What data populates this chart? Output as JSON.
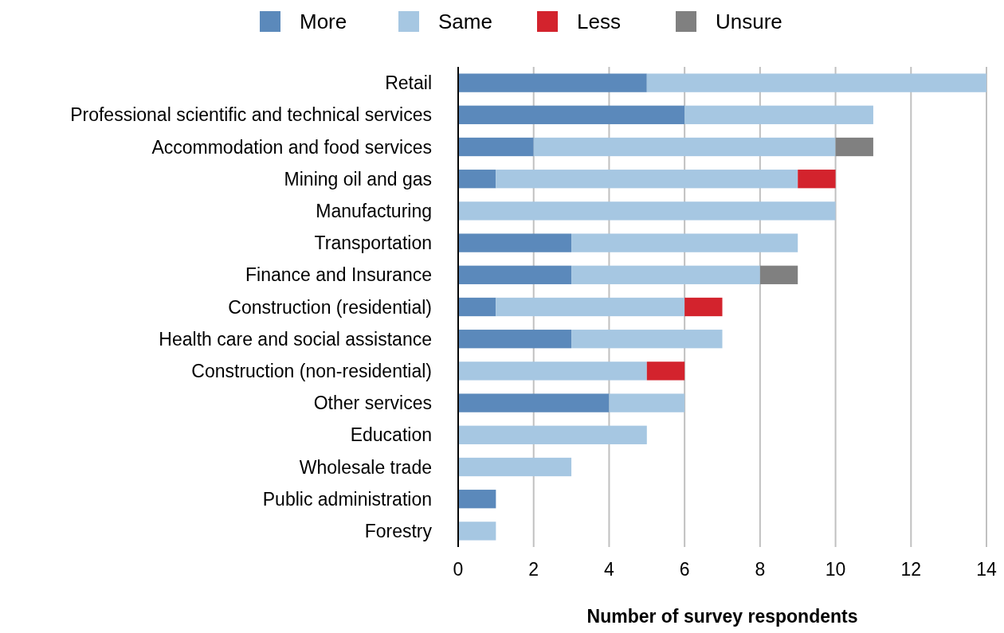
{
  "chart_data": {
    "type": "bar",
    "orientation": "horizontal",
    "stacked": true,
    "xlabel": "Number of survey respondents",
    "categories": [
      "Retail",
      "Professional scientific and technical services",
      "Accommodation and food services",
      "Mining oil and gas",
      "Manufacturing",
      "Transportation",
      "Finance and Insurance",
      "Construction (residential)",
      "Health care and social assistance",
      "Construction (non-residential)",
      "Other services",
      "Education",
      "Wholesale trade",
      "Public administration",
      "Forestry"
    ],
    "series": [
      {
        "name": "More",
        "color": "#5b89bb",
        "values": [
          5,
          6,
          2,
          1,
          null,
          3,
          3,
          1,
          3,
          null,
          4,
          null,
          null,
          1,
          null
        ]
      },
      {
        "name": "Same",
        "color": "#a6c7e2",
        "values": [
          9,
          5,
          8,
          8,
          10,
          6,
          5,
          5,
          4,
          5,
          2,
          5,
          3,
          null,
          1
        ]
      },
      {
        "name": "Less",
        "color": "#d3232d",
        "values": [
          null,
          null,
          null,
          1,
          null,
          null,
          null,
          1,
          null,
          1,
          null,
          null,
          null,
          null,
          null
        ]
      },
      {
        "name": "Unsure",
        "color": "#808080",
        "values": [
          null,
          null,
          1,
          null,
          null,
          null,
          1,
          null,
          null,
          null,
          null,
          null,
          null,
          null,
          null
        ]
      }
    ],
    "xlim": [
      0,
      14
    ],
    "xticks": [
      0,
      2,
      4,
      6,
      8,
      10,
      12,
      14
    ],
    "grid": "x",
    "legend": "top"
  }
}
